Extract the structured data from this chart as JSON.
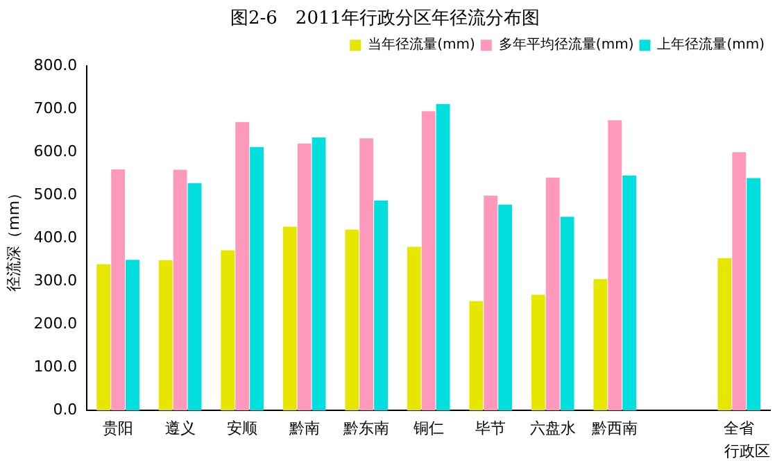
{
  "chart_data": {
    "type": "bar",
    "title": "图2-6　2011年行政分区年径流分布图",
    "xlabel": "行政区",
    "ylabel": "径流深（mm）",
    "categories": [
      "贵阳",
      "遵义",
      "安顺",
      "黔南",
      "黔东南",
      "铜仁",
      "毕节",
      "六盘水",
      "黔西南",
      null,
      "全省"
    ],
    "series": [
      {
        "name": "当年径流量(mm)",
        "color": "#e6e600",
        "values": [
          340,
          349,
          372,
          427,
          420,
          380,
          254,
          269,
          305,
          null,
          354
        ]
      },
      {
        "name": "多年平均径流量(mm)",
        "color": "#ff99bb",
        "values": [
          560,
          559,
          670,
          620,
          632,
          695,
          499,
          541,
          674,
          null,
          600
        ]
      },
      {
        "name": "上年径流量(mm)",
        "color": "#00dede",
        "values": [
          350,
          528,
          612,
          634,
          488,
          712,
          478,
          450,
          546,
          null,
          540
        ]
      }
    ],
    "ylim": [
      0,
      800
    ],
    "yticks": [
      {
        "value": 0,
        "label": "0.0"
      },
      {
        "value": 100,
        "label": "100.0"
      },
      {
        "value": 200,
        "label": "200.0"
      },
      {
        "value": 300,
        "label": "300.0"
      },
      {
        "value": 400,
        "label": "400.0"
      },
      {
        "value": 500,
        "label": "500.0"
      },
      {
        "value": 600,
        "label": "600.0"
      },
      {
        "value": 700,
        "label": "700.0"
      },
      {
        "value": 800,
        "label": "800.0"
      }
    ],
    "grid": false,
    "legend": "top right"
  }
}
